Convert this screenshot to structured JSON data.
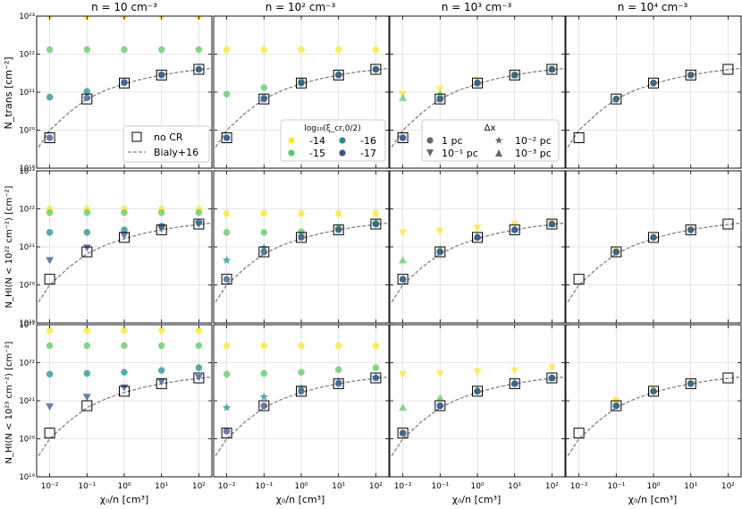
{
  "figure": {
    "column_titles": [
      "n = 10 cm⁻³",
      "n = 10² cm⁻³",
      "n = 10³ cm⁻³",
      "n = 10⁴ cm⁻³"
    ],
    "row_ylabels": [
      "N_trans [cm⁻²]",
      "N_HI(N < 10²² cm⁻²) [cm⁻²]",
      "N_HI(N < 10²³ cm⁻²) [cm⁻²]"
    ],
    "xlabel": "χ₀/n [cm³]"
  },
  "legends": {
    "reference": {
      "entries": [
        {
          "label": "no CR",
          "marker": "open-square"
        },
        {
          "label": "Bialy+16",
          "marker": "dashed-line"
        }
      ]
    },
    "crir": {
      "title": "log₁₀(ξ_cr,0/2)",
      "entries": [
        {
          "label": "-14",
          "color": "#fde725"
        },
        {
          "label": "-15",
          "color": "#5ec962"
        },
        {
          "label": "-16",
          "color": "#21918c"
        },
        {
          "label": "-17",
          "color": "#3b528b"
        }
      ]
    },
    "resolution": {
      "title": "Δx",
      "entries": [
        {
          "label": "1 pc",
          "marker": "circle"
        },
        {
          "label": "10⁻² pc",
          "marker": "star"
        },
        {
          "label": "10⁻¹ pc",
          "marker": "triangle-down"
        },
        {
          "label": "10⁻³ pc",
          "marker": "triangle-up"
        }
      ]
    }
  },
  "chart_data": {
    "type": "scatter",
    "layout": "3x4 grid of panels with shared log axes",
    "xscale": "log",
    "yscale": "log",
    "x": [
      0.01,
      0.1,
      1,
      10,
      100
    ],
    "xlim_log10": [
      -2.35,
      2.35
    ],
    "ylim_log10": [
      19,
      23
    ],
    "x_ticks": [
      "10⁻²",
      "10⁻¹",
      "10⁰",
      "10¹",
      "10²"
    ],
    "y_ticks": [
      "10¹⁹",
      "10²⁰",
      "10²¹",
      "10²²",
      "10²³"
    ],
    "colors": {
      "-14": "#fde725",
      "-15": "#5ec962",
      "-16": "#21918c",
      "-17": "#3b528b"
    },
    "bialy16_log10": [
      [
        -2.3,
        19.55
      ],
      [
        -2,
        20.0
      ],
      [
        -1.5,
        20.45
      ],
      [
        -1,
        20.82
      ],
      [
        -0.5,
        21.05
      ],
      [
        0,
        21.22
      ],
      [
        0.5,
        21.35
      ],
      [
        1,
        21.45
      ],
      [
        1.5,
        21.53
      ],
      [
        2,
        21.59
      ],
      [
        2.3,
        21.62
      ]
    ],
    "rows": [
      {
        "quantity": "N_trans",
        "no_cr_log10": [
          19.8,
          20.82,
          21.24,
          21.45,
          21.6
        ],
        "panels": [
          {
            "n": 10,
            "series": [
              {
                "crir": "-14",
                "marker": "circle",
                "values": [
                  23.0,
                  23.0,
                  23.0,
                  23.0,
                  23.0
                ]
              },
              {
                "crir": "-15",
                "marker": "circle",
                "values": [
                  22.12,
                  22.12,
                  22.12,
                  22.12,
                  22.12
                ]
              },
              {
                "crir": "-16",
                "marker": "circle",
                "values": [
                  20.87,
                  21.02,
                  21.26,
                  21.46,
                  21.6
                ]
              },
              {
                "crir": "-17",
                "marker": "circle",
                "values": [
                  19.8,
                  20.85,
                  21.25,
                  21.45,
                  21.6
                ]
              }
            ]
          },
          {
            "n": 100,
            "series": [
              {
                "crir": "-14",
                "marker": "circle",
                "values": [
                  22.12,
                  22.12,
                  22.12,
                  22.12,
                  22.12
                ]
              },
              {
                "crir": "-15",
                "marker": "circle",
                "values": [
                  20.95,
                  21.12,
                  21.3,
                  21.47,
                  21.6
                ]
              },
              {
                "crir": "-16",
                "marker": "circle",
                "values": [
                  19.8,
                  20.85,
                  21.25,
                  21.45,
                  21.6
                ]
              },
              {
                "crir": "-17",
                "marker": "circle",
                "values": [
                  19.8,
                  20.82,
                  21.24,
                  21.45,
                  21.6
                ]
              }
            ]
          },
          {
            "n": 1000,
            "series": [
              {
                "crir": "-14",
                "marker": "triangle-down",
                "values": [
                  20.95,
                  21.08,
                  21.3,
                  21.46,
                  21.6
                ]
              },
              {
                "crir": "-15",
                "marker": "triangle-up",
                "values": [
                  20.85,
                  20.95,
                  21.27,
                  21.45,
                  21.6
                ]
              },
              {
                "crir": "-16",
                "marker": "circle",
                "values": [
                  19.8,
                  20.82,
                  21.24,
                  21.45,
                  21.6
                ]
              },
              {
                "crir": "-17",
                "marker": "circle",
                "values": [
                  19.8,
                  20.82,
                  21.24,
                  21.45,
                  21.6
                ]
              }
            ]
          },
          {
            "n": 10000,
            "series": [
              {
                "crir": "-14",
                "marker": "circle",
                "values": [
                  null,
                  20.82,
                  21.24,
                  21.45,
                  null
                ]
              },
              {
                "crir": "-16",
                "marker": "circle",
                "values": [
                  null,
                  20.82,
                  21.24,
                  21.45,
                  null
                ]
              },
              {
                "crir": "-17",
                "marker": "circle",
                "values": [
                  null,
                  20.82,
                  21.24,
                  21.45,
                  null
                ]
              }
            ]
          }
        ]
      },
      {
        "quantity": "N_HI(N < 10^22 cm^-2)",
        "no_cr_log10": [
          20.15,
          20.87,
          21.25,
          21.45,
          21.6
        ],
        "panels": [
          {
            "n": 10,
            "series": [
              {
                "crir": "-14",
                "marker": "circle",
                "values": [
                  22.0,
                  22.0,
                  22.0,
                  22.0,
                  22.0
                ]
              },
              {
                "crir": "-15",
                "marker": "circle",
                "values": [
                  21.9,
                  21.9,
                  21.9,
                  21.9,
                  21.9
                ]
              },
              {
                "crir": "-16",
                "marker": "circle",
                "values": [
                  21.38,
                  21.38,
                  21.45,
                  21.55,
                  21.65
                ]
              },
              {
                "crir": "-17",
                "marker": "triangle-down",
                "values": [
                  20.65,
                  20.98,
                  21.3,
                  21.48,
                  21.6
                ]
              }
            ]
          },
          {
            "n": 100,
            "series": [
              {
                "crir": "-14",
                "marker": "circle",
                "values": [
                  21.88,
                  21.88,
                  21.88,
                  21.88,
                  21.88
                ]
              },
              {
                "crir": "-15",
                "marker": "circle",
                "values": [
                  21.38,
                  21.38,
                  21.4,
                  21.5,
                  21.65
                ]
              },
              {
                "crir": "-16",
                "marker": "star",
                "values": [
                  20.65,
                  20.98,
                  21.28,
                  21.47,
                  21.6
                ]
              },
              {
                "crir": "-17",
                "marker": "circle",
                "values": [
                  20.15,
                  20.87,
                  21.25,
                  21.45,
                  21.6
                ]
              }
            ]
          },
          {
            "n": 1000,
            "series": [
              {
                "crir": "-14",
                "marker": "triangle-down",
                "values": [
                  21.38,
                  21.42,
                  21.5,
                  21.6,
                  21.66
                ]
              },
              {
                "crir": "-15",
                "marker": "triangle-up",
                "values": [
                  20.65,
                  20.95,
                  21.28,
                  21.46,
                  21.6
                ]
              },
              {
                "crir": "-16",
                "marker": "circle",
                "values": [
                  20.15,
                  20.87,
                  21.25,
                  21.45,
                  21.6
                ]
              },
              {
                "crir": "-17",
                "marker": "circle",
                "values": [
                  20.15,
                  20.87,
                  21.25,
                  21.45,
                  21.6
                ]
              }
            ]
          },
          {
            "n": 10000,
            "series": [
              {
                "crir": "-14",
                "marker": "circle",
                "values": [
                  null,
                  20.9,
                  21.26,
                  21.46,
                  null
                ]
              },
              {
                "crir": "-16",
                "marker": "circle",
                "values": [
                  null,
                  20.87,
                  21.25,
                  21.45,
                  null
                ]
              },
              {
                "crir": "-17",
                "marker": "circle",
                "values": [
                  null,
                  20.87,
                  21.25,
                  21.45,
                  null
                ]
              }
            ]
          }
        ]
      },
      {
        "quantity": "N_HI(N < 10^23 cm^-2)",
        "no_cr_log10": [
          20.15,
          20.87,
          21.25,
          21.45,
          21.6
        ],
        "panels": [
          {
            "n": 10,
            "series": [
              {
                "crir": "-14",
                "marker": "circle",
                "values": [
                  22.85,
                  22.85,
                  22.85,
                  22.85,
                  22.85
                ]
              },
              {
                "crir": "-15",
                "marker": "circle",
                "values": [
                  22.45,
                  22.45,
                  22.45,
                  22.45,
                  22.45
                ]
              },
              {
                "crir": "-16",
                "marker": "circle",
                "values": [
                  21.7,
                  21.72,
                  21.75,
                  21.8,
                  21.87
                ]
              },
              {
                "crir": "-17",
                "marker": "triangle-down",
                "values": [
                  20.85,
                  21.1,
                  21.35,
                  21.5,
                  21.62
                ]
              }
            ]
          },
          {
            "n": 100,
            "series": [
              {
                "crir": "-14",
                "marker": "circle",
                "values": [
                  22.45,
                  22.45,
                  22.45,
                  22.45,
                  22.45
                ]
              },
              {
                "crir": "-15",
                "marker": "circle",
                "values": [
                  21.7,
                  21.72,
                  21.75,
                  21.82,
                  21.87
                ]
              },
              {
                "crir": "-16",
                "marker": "star",
                "values": [
                  20.82,
                  21.1,
                  21.33,
                  21.5,
                  21.62
                ]
              },
              {
                "crir": "-17",
                "marker": "circle",
                "values": [
                  20.2,
                  20.87,
                  21.25,
                  21.45,
                  21.6
                ]
              }
            ]
          },
          {
            "n": 1000,
            "series": [
              {
                "crir": "-14",
                "marker": "triangle-down",
                "values": [
                  21.7,
                  21.72,
                  21.77,
                  21.8,
                  21.87
                ]
              },
              {
                "crir": "-15",
                "marker": "triangle-up",
                "values": [
                  20.82,
                  21.08,
                  21.3,
                  21.48,
                  21.6
                ]
              },
              {
                "crir": "-16",
                "marker": "circle",
                "values": [
                  20.15,
                  20.87,
                  21.25,
                  21.45,
                  21.6
                ]
              },
              {
                "crir": "-17",
                "marker": "circle",
                "values": [
                  20.15,
                  20.87,
                  21.25,
                  21.45,
                  21.6
                ]
              }
            ]
          },
          {
            "n": 10000,
            "series": [
              {
                "crir": "-14",
                "marker": "circle",
                "values": [
                  null,
                  21.02,
                  21.28,
                  21.47,
                  null
                ]
              },
              {
                "crir": "-16",
                "marker": "circle",
                "values": [
                  null,
                  20.87,
                  21.25,
                  21.45,
                  null
                ]
              },
              {
                "crir": "-17",
                "marker": "circle",
                "values": [
                  null,
                  20.87,
                  21.25,
                  21.45,
                  null
                ]
              }
            ]
          }
        ]
      }
    ]
  }
}
